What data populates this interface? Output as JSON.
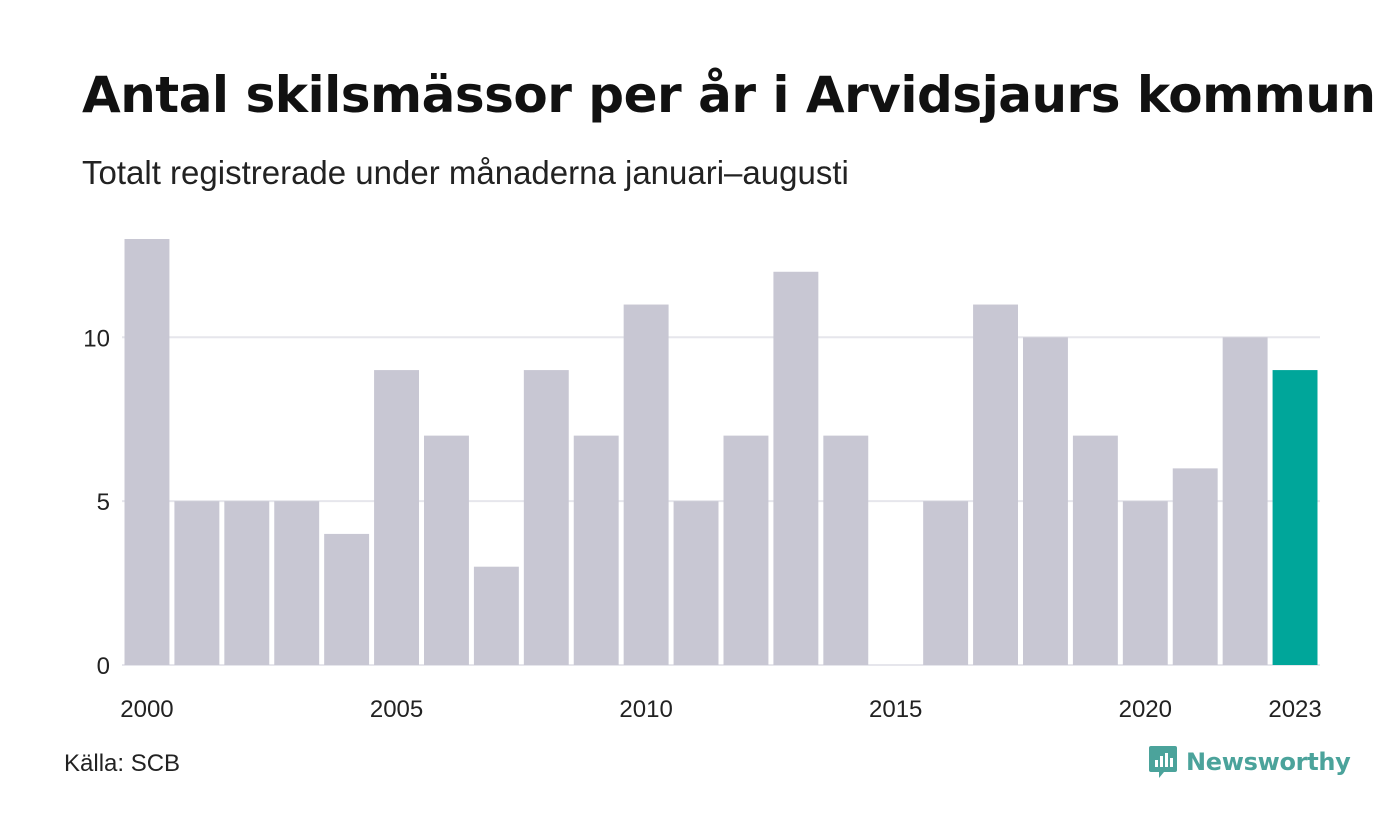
{
  "title": "Antal skilsmässor per år i Arvidsjaurs kommun",
  "subtitle": "Totalt registrerade under månaderna januari–augusti",
  "source": "Källa: SCB",
  "brand": {
    "name": "Newsworthy",
    "icon": "newsworthy-logo-icon",
    "color": "#4ba39b"
  },
  "colors": {
    "bar": "#c8c7d3",
    "highlight": "#00a69a",
    "grid": "#e6e6ec"
  },
  "chart_data": {
    "type": "bar",
    "title": "Antal skilsmässor per år i Arvidsjaurs kommun",
    "subtitle": "Totalt registrerade under månaderna januari–augusti",
    "categories": [
      2000,
      2001,
      2002,
      2003,
      2004,
      2005,
      2006,
      2007,
      2008,
      2009,
      2010,
      2011,
      2012,
      2013,
      2014,
      2015,
      2016,
      2017,
      2018,
      2019,
      2020,
      2021,
      2022,
      2023
    ],
    "values": [
      13,
      5,
      5,
      5,
      4,
      9,
      7,
      3,
      9,
      7,
      11,
      5,
      7,
      12,
      7,
      0,
      5,
      11,
      10,
      7,
      5,
      6,
      10,
      9
    ],
    "highlight_category": 2023,
    "xticks": [
      "2000",
      "2005",
      "2010",
      "2015",
      "2020",
      "2023"
    ],
    "yticks": [
      "0",
      "5",
      "10"
    ],
    "ylim": [
      0,
      13
    ],
    "grid": true,
    "legend": false
  }
}
